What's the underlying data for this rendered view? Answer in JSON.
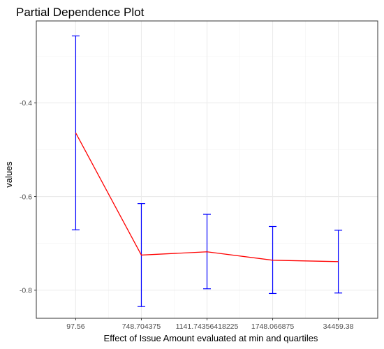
{
  "chart_data": {
    "type": "line",
    "title": "Partial Dependence Plot",
    "xlabel": "Effect of Issue Amount evaluated at min and quartiles",
    "ylabel": "values",
    "categories": [
      "97.56",
      "748.704375",
      "1141.74356418225",
      "1748.066875",
      "34459.38"
    ],
    "series": [
      {
        "values": [
          -0.464,
          -0.725,
          -0.718,
          -0.736,
          -0.739
        ],
        "upper": [
          -0.257,
          -0.615,
          -0.638,
          -0.664,
          -0.672
        ],
        "lower": [
          -0.671,
          -0.835,
          -0.797,
          -0.807,
          -0.806
        ]
      }
    ],
    "ylim": [
      -0.86,
      -0.225
    ],
    "yticks": [
      -0.4,
      -0.6,
      -0.8
    ],
    "ytick_labels": [
      "-0.4",
      "-0.6",
      "-0.8"
    ],
    "line_color": "#ff0000",
    "errorbar_color": "#0000ff",
    "grid": true,
    "border": true
  }
}
